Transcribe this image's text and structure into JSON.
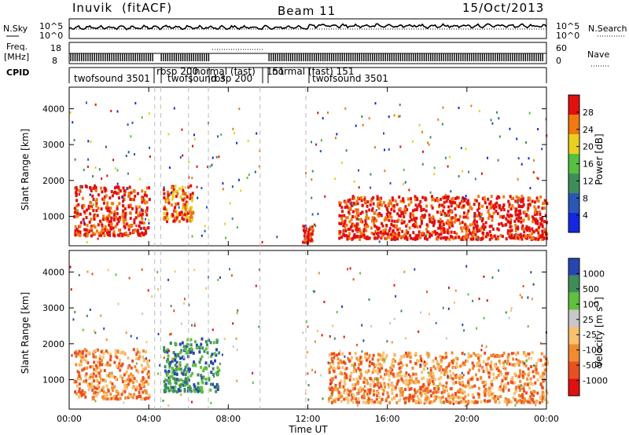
{
  "header": {
    "station": "Inuvik",
    "mode": "(fitACF)",
    "beam": "Beam 11",
    "date": "15/Oct/2013"
  },
  "panels": {
    "nsky": {
      "left_label": "N.Sky",
      "left_ticks": [
        "10^5",
        "10^0"
      ],
      "right_ticks": [
        "10^5",
        "10^0"
      ],
      "right_label": "N.Search"
    },
    "freq": {
      "left_label_1": "Freq.",
      "left_label_2": "[MHz]",
      "left_ticks": [
        "18",
        "8"
      ],
      "right_ticks": [
        "60",
        "0"
      ],
      "right_label": "Nave"
    },
    "cpid": {
      "left_label": "CPID",
      "modes": [
        "twofsound 3501",
        "rbsp 200",
        "twofsound 3",
        "normal (fast)",
        "rbsp 200",
        "151",
        "normal (fast)  151",
        "twofsound  3501"
      ]
    },
    "power": {
      "colorbar_label": "Power [dB]",
      "colorbar_ticks": [
        "28",
        "24",
        "20",
        "16",
        "12",
        "8",
        "4"
      ]
    },
    "velocity": {
      "colorbar_label": "Velocity  [m s",
      "colorbar_label_sup": "-1",
      "colorbar_label_end": "]",
      "colorbar_ticks": [
        "1000",
        "500",
        "100",
        "25",
        "-25",
        "-100",
        "-500",
        "-1000"
      ]
    }
  },
  "chart_data": [
    {
      "type": "heatmap",
      "title": "Power",
      "ylabel": "Slant Range [km]",
      "yticks": [
        "1000",
        "2000",
        "3000",
        "4000"
      ],
      "ylim": [
        180,
        4600
      ],
      "xlim": [
        0,
        24
      ],
      "quantity": "Power [dB]",
      "color_scale": [
        4,
        8,
        12,
        16,
        20,
        24,
        28
      ],
      "colors": [
        "#1428e0",
        "#2b56b6",
        "#3f8e5a",
        "#56c040",
        "#e8d020",
        "#f07a10",
        "#e01010"
      ],
      "dominant_regions": [
        {
          "start_ut": 0.2,
          "end_ut": 4.0,
          "range_km": [
            500,
            1900
          ],
          "power_db": 28
        },
        {
          "start_ut": 4.7,
          "end_ut": 6.2,
          "range_km": [
            900,
            1900
          ],
          "power_db": 24
        },
        {
          "start_ut": 11.7,
          "end_ut": 12.2,
          "range_km": [
            300,
            800
          ],
          "power_db": 26
        },
        {
          "start_ut": 13.5,
          "end_ut": 24.0,
          "range_km": [
            400,
            1600
          ],
          "power_db": 28
        }
      ]
    },
    {
      "type": "heatmap",
      "title": "Velocity",
      "ylabel": "Slant Range [km]",
      "xlabel": "Time UT",
      "xticks": [
        "00:00",
        "04:00",
        "08:00",
        "12:00",
        "16:00",
        "20:00",
        "00:00"
      ],
      "yticks": [
        "1000",
        "2000",
        "3000",
        "4000"
      ],
      "ylim": [
        180,
        4600
      ],
      "xlim": [
        0,
        24
      ],
      "quantity": "Velocity [m s-1]",
      "color_scale": [
        -1000,
        -500,
        -100,
        -25,
        25,
        100,
        500,
        1000
      ],
      "colors": [
        "#e01010",
        "#e85020",
        "#f08c30",
        "#f8c070",
        "#c8c8c8",
        "#5fc040",
        "#3f8e5a",
        "#2846b0"
      ],
      "dominant_regions": [
        {
          "start_ut": 0.2,
          "end_ut": 4.0,
          "range_km": [
            500,
            1900
          ],
          "velocity_ms": -100
        },
        {
          "start_ut": 4.7,
          "end_ut": 7.5,
          "range_km": [
            700,
            2200
          ],
          "velocity_ms": 300
        },
        {
          "start_ut": 13.0,
          "end_ut": 24.0,
          "range_km": [
            400,
            1800
          ],
          "velocity_ms": -150
        }
      ]
    }
  ]
}
